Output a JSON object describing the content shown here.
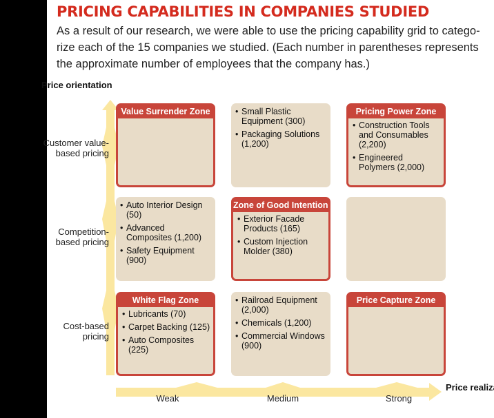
{
  "title": "PRICING CAPABILITIES IN COMPANIES STUDIED",
  "intro": "As a result of our research, we were able to use the pricing capability grid to catego-rize each of the 15 companies we studied. (Each number in parentheses represents the approximate number of employees that the company has.)",
  "axes": {
    "y_title": "Price orientation",
    "x_title": "Price realization",
    "rows": [
      "Customer value-based pricing",
      "Competition-based pricing",
      "Cost-based pricing"
    ],
    "columns": [
      "Weak",
      "Medium",
      "Strong"
    ]
  },
  "colors": {
    "title_red": "#d42b1e",
    "zone_red": "#c8453a",
    "cell_beige": "#e8dcc8",
    "arrow_yellow": "#fbe7a0"
  },
  "grid": {
    "r1c1": {
      "zone": "Value Surrender Zone",
      "items": []
    },
    "r1c2": {
      "zone": "",
      "items": [
        "Small Plastic Equipment (300)",
        "Packaging Solutions (1,200)"
      ]
    },
    "r1c3": {
      "zone": "Pricing Power Zone",
      "items": [
        "Construction Tools and Consumables (2,200)",
        "Engineered Polymers (2,000)"
      ]
    },
    "r2c1": {
      "zone": "",
      "items": [
        "Auto Interior Design (50)",
        "Advanced Composites (1,200)",
        "Safety Equipment (900)"
      ]
    },
    "r2c2": {
      "zone": "Zone of Good Intentions",
      "items": [
        "Exterior Facade Products (165)",
        "Custom Injection Molder (380)"
      ]
    },
    "r2c3": {
      "zone": "",
      "items": []
    },
    "r3c1": {
      "zone": "White Flag Zone",
      "items": [
        "Lubricants (70)",
        "Carpet Backing (125)",
        "Auto Composites (225)"
      ]
    },
    "r3c2": {
      "zone": "",
      "items": [
        "Railroad Equipment (2,000)",
        "Chemicals (1,200)",
        "Commercial Windows (900)"
      ]
    },
    "r3c3": {
      "zone": "Price Capture Zone",
      "items": []
    }
  }
}
